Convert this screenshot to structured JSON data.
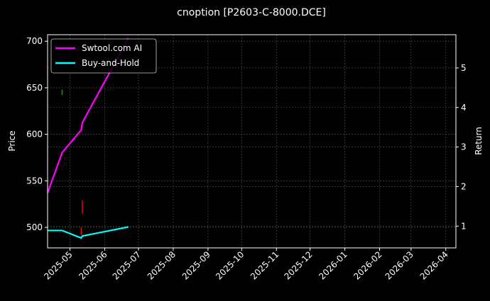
{
  "chart_data": {
    "type": "line",
    "title": "cnoption [P2603-C-8000.DCE]",
    "ylabel": "Price",
    "ylabel_right": "Return",
    "xlabel": "",
    "x_ticks": [
      "2025-05",
      "2025-06",
      "2025-07",
      "2025-08",
      "2025-09",
      "2025-10",
      "2025-11",
      "2025-12",
      "2026-01",
      "2026-02",
      "2026-03",
      "2026-04"
    ],
    "y_ticks": [
      500,
      550,
      600,
      650,
      700
    ],
    "y_right_ticks": [
      1,
      2,
      3,
      4,
      5
    ],
    "xlim": [
      "2025-04-11",
      "2026-04-10"
    ],
    "ylim": [
      478,
      707
    ],
    "ylim_right": [
      0.45,
      5.84
    ],
    "grid": true,
    "legend_placement": "top-left",
    "series": [
      {
        "name": "Swtool.com AI",
        "axis": "right",
        "color": "#ff00ff",
        "x": [
          "2025-04-11",
          "2025-04-24",
          "2025-05-11",
          "2025-05-12",
          "2025-06-22"
        ],
        "y": [
          1.84,
          2.86,
          3.43,
          3.62,
          5.75
        ]
      },
      {
        "name": "Buy-and-Hold",
        "axis": "right",
        "color": "#00ffff",
        "x": [
          "2025-04-11",
          "2025-04-24",
          "2025-05-11",
          "2025-05-12",
          "2025-06-22"
        ],
        "y": [
          0.89,
          0.89,
          0.7,
          0.75,
          0.98
        ]
      }
    ],
    "markers": [
      {
        "type": "buy",
        "color": "#00aa00",
        "x": "2025-04-24",
        "y_range": [
          642,
          648
        ]
      },
      {
        "type": "sell",
        "color": "#ff0000",
        "x": "2025-05-12",
        "y_range": [
          515,
          529
        ]
      },
      {
        "type": "sell",
        "color": "#ff0000",
        "x": "2025-05-11",
        "y_range": [
          492,
          500
        ]
      }
    ]
  }
}
